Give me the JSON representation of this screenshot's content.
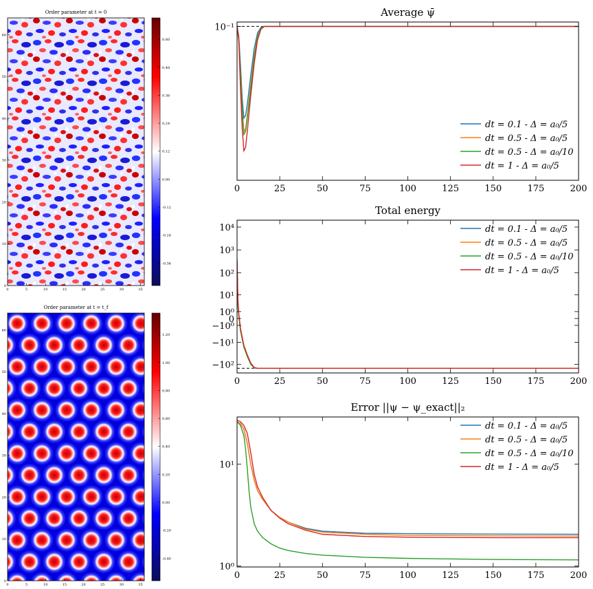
{
  "heatmaps": [
    {
      "title": "Order parameter at t = 0",
      "x_ticks": [
        0,
        5,
        10,
        15,
        20,
        25,
        30,
        35
      ],
      "y_ticks": [
        0,
        10,
        20,
        30,
        40,
        50,
        60
      ],
      "colorbar_ticks": [
        "0.60",
        "0.48",
        "0.36",
        "0.24",
        "0.12",
        "0.00",
        "-0.12",
        "-0.24",
        "-0.36"
      ],
      "colorbar_colors": [
        "#0d0d5a",
        "#0000ff",
        "#ffffff",
        "#ff0000",
        "#660000"
      ]
    },
    {
      "title": "Order parameter at t = t_f",
      "x_ticks": [
        0,
        5,
        10,
        15,
        20,
        25,
        30,
        35
      ],
      "y_ticks": [
        0,
        10,
        20,
        30,
        40,
        50,
        60
      ],
      "colorbar_ticks": [
        "1.20",
        "1.00",
        "0.80",
        "0.60",
        "0.40",
        "0.20",
        "0.00",
        "-0.20",
        "-0.40"
      ],
      "colorbar_colors": [
        "#0d0d5a",
        "#0000ff",
        "#ffffff",
        "#ff0000",
        "#660000"
      ]
    }
  ],
  "series_legend": [
    {
      "name": "dt = 0.1 - Δ = a₀/5",
      "color": "#1f77b4"
    },
    {
      "name": "dt = 0.5 - Δ = a₀/5",
      "color": "#ff7f0e"
    },
    {
      "name": "dt = 0.5 - Δ = a₀/10",
      "color": "#2ca02c"
    },
    {
      "name": "dt = 1 - Δ = a₀/5",
      "color": "#d62728"
    }
  ],
  "chart_data": [
    {
      "type": "line",
      "title": "Average ψ̄",
      "xlabel": "",
      "ylabel": "",
      "xlim": [
        0,
        200
      ],
      "x_ticks": [
        "0",
        "25",
        "50",
        "75",
        "100",
        "125",
        "150",
        "175",
        "200"
      ],
      "y_ticks": [
        "10⁻¹"
      ],
      "y_scale": "log",
      "reference_line": 0.1,
      "legend_position": "lower-right",
      "series": [
        {
          "name": "dt = 0.1 - Δ = a₀/5",
          "x": [
            0,
            1,
            2,
            3,
            4,
            5,
            6,
            8,
            10,
            12,
            14,
            16,
            200
          ],
          "values": [
            0.1,
            0.09,
            0.065,
            0.045,
            0.036,
            0.037,
            0.042,
            0.058,
            0.078,
            0.093,
            0.099,
            0.1,
            0.1
          ]
        },
        {
          "name": "dt = 0.5 - Δ = a₀/5",
          "x": [
            0,
            1,
            2,
            3,
            4,
            5,
            6,
            8,
            10,
            12,
            14,
            16,
            200
          ],
          "values": [
            0.1,
            0.088,
            0.06,
            0.04,
            0.031,
            0.032,
            0.037,
            0.052,
            0.072,
            0.09,
            0.098,
            0.1,
            0.1
          ]
        },
        {
          "name": "dt = 0.5 - Δ = a₀/10",
          "x": [
            0,
            1,
            2,
            3,
            4,
            5,
            6,
            8,
            10,
            12,
            14,
            16,
            200
          ],
          "values": [
            0.1,
            0.087,
            0.058,
            0.038,
            0.03,
            0.031,
            0.036,
            0.05,
            0.07,
            0.089,
            0.098,
            0.1,
            0.1
          ]
        },
        {
          "name": "dt = 1 - Δ = a₀/5",
          "x": [
            0,
            1,
            2,
            3,
            4,
            5,
            6,
            8,
            10,
            12,
            14,
            16,
            200
          ],
          "values": [
            0.1,
            0.085,
            0.05,
            0.032,
            0.025,
            0.026,
            0.031,
            0.046,
            0.066,
            0.086,
            0.097,
            0.1,
            0.1
          ]
        }
      ]
    },
    {
      "type": "line",
      "title": "Total energy",
      "xlabel": "",
      "ylabel": "",
      "xlim": [
        0,
        200
      ],
      "x_ticks": [
        "0",
        "25",
        "50",
        "75",
        "100",
        "125",
        "150",
        "175",
        "200"
      ],
      "y_ticks": [
        "10⁴",
        "10³",
        "10²",
        "10¹",
        "10⁰",
        "0",
        "−10⁰",
        "−10¹",
        "−10²"
      ],
      "y_scale": "symlog",
      "reference_line": -150,
      "legend_position": "top-right",
      "series": [
        {
          "name": "dt = 0.1 - Δ = a₀/5",
          "x": [
            0,
            0.5,
            1,
            2,
            3,
            4,
            6,
            8,
            10,
            12,
            200
          ],
          "values": [
            300,
            5,
            0.5,
            -2,
            -6,
            -15,
            -40,
            -90,
            -140,
            -150,
            -150
          ]
        },
        {
          "name": "dt = 0.5 - Δ = a₀/5",
          "x": [
            0,
            0.5,
            1,
            2,
            3,
            4,
            6,
            8,
            10,
            12,
            200
          ],
          "values": [
            250,
            4,
            0.4,
            -2.2,
            -6.5,
            -16,
            -42,
            -95,
            -142,
            -150,
            -150
          ]
        },
        {
          "name": "dt = 0.5 - Δ = a₀/10",
          "x": [
            0,
            0.5,
            1,
            2,
            3,
            4,
            6,
            8,
            10,
            12,
            200
          ],
          "values": [
            200,
            3,
            0.3,
            -2.5,
            -7,
            -17,
            -45,
            -100,
            -145,
            -150,
            -150
          ]
        },
        {
          "name": "dt = 1 - Δ = a₀/5",
          "x": [
            0,
            0.5,
            1,
            2,
            3,
            4,
            6,
            8,
            10,
            12,
            200
          ],
          "values": [
            400,
            6,
            0.6,
            -1.8,
            -5.5,
            -14,
            -38,
            -88,
            -138,
            -150,
            -150
          ]
        }
      ]
    },
    {
      "type": "line",
      "title": "Error ||ψ − ψ_exact||₂",
      "xlabel": "",
      "ylabel": "",
      "xlim": [
        0,
        200
      ],
      "ylim": [
        0.98,
        29
      ],
      "x_ticks": [
        "0",
        "25",
        "50",
        "75",
        "100",
        "125",
        "150",
        "175",
        "200"
      ],
      "y_ticks": [
        "10¹",
        "10⁰"
      ],
      "y_scale": "log",
      "legend_position": "top-right",
      "series": [
        {
          "name": "dt = 0.1 - Δ = a₀/5",
          "x": [
            0,
            2,
            4,
            6,
            8,
            10,
            12,
            15,
            20,
            25,
            30,
            40,
            50,
            75,
            100,
            150,
            200
          ],
          "values": [
            26,
            25,
            22,
            16,
            10,
            7,
            5.5,
            4.5,
            3.5,
            3.0,
            2.7,
            2.35,
            2.2,
            2.1,
            2.08,
            2.06,
            2.05
          ]
        },
        {
          "name": "dt = 0.5 - Δ = a₀/5",
          "x": [
            0,
            2,
            4,
            6,
            8,
            10,
            12,
            15,
            20,
            25,
            30,
            40,
            50,
            75,
            100,
            150,
            200
          ],
          "values": [
            26,
            25,
            22,
            16,
            10,
            7,
            5.5,
            4.5,
            3.5,
            3.0,
            2.7,
            2.3,
            2.15,
            2.05,
            2.0,
            1.98,
            1.97
          ]
        },
        {
          "name": "dt = 0.5 - Δ = a₀/10",
          "x": [
            0,
            2,
            4,
            5,
            6,
            7,
            8,
            10,
            12,
            15,
            20,
            25,
            30,
            40,
            50,
            75,
            100,
            150,
            200
          ],
          "values": [
            26,
            24,
            19,
            14,
            9,
            5.5,
            3.8,
            2.6,
            2.2,
            1.9,
            1.65,
            1.5,
            1.42,
            1.33,
            1.28,
            1.22,
            1.19,
            1.16,
            1.15
          ]
        },
        {
          "name": "dt = 1 - Δ = a₀/5",
          "x": [
            0,
            2,
            4,
            6,
            8,
            10,
            12,
            15,
            20,
            25,
            30,
            40,
            50,
            75,
            100,
            150,
            200
          ],
          "values": [
            27,
            26,
            24,
            20,
            13,
            8,
            6,
            4.7,
            3.5,
            2.95,
            2.6,
            2.25,
            2.05,
            1.95,
            1.92,
            1.9,
            1.9
          ]
        }
      ]
    }
  ]
}
